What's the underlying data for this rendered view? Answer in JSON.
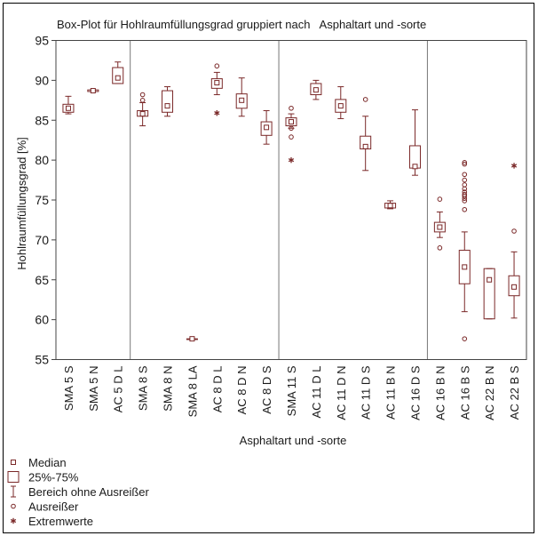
{
  "chart_data": {
    "type": "box",
    "title": "Box-Plot für Hohlraumfüllungsgrad gruppiert nach   Asphaltart und -sorte",
    "xlabel": "Asphaltart und -sorte",
    "ylabel": "Hohlraumfüllungsgrad [%]",
    "ylim": [
      55,
      95
    ],
    "yticks": [
      55,
      60,
      65,
      70,
      75,
      80,
      85,
      90,
      95
    ],
    "group_separators_after_index": [
      2,
      8,
      14
    ],
    "colors": {
      "mark": "#7a2828",
      "frame": "#000000",
      "grid": "#777777"
    },
    "categories": [
      "SMA 5 S",
      "SMA 5 N",
      "AC 5 D L",
      "SMA 8 S",
      "SMA 8 N",
      "SMA 8 LA",
      "AC 8 D L",
      "AC 8 D N",
      "AC 8 D S",
      "SMA 11 S",
      "AC 11 D L",
      "AC 11 D N",
      "AC 11 D S",
      "AC 11 B N",
      "AC 16 D S",
      "AC 16 B N",
      "AC 16 B S",
      "AC 22 B N",
      "AC 22 B S"
    ],
    "boxes": [
      {
        "median": 86.5,
        "q1": 86.0,
        "q3": 87.0,
        "whisker_low": 85.8,
        "whisker_high": 88.0,
        "outliers": [],
        "extremes": []
      },
      {
        "median": 88.7,
        "q1": 88.6,
        "q3": 88.8,
        "whisker_low": 88.6,
        "whisker_high": 88.8,
        "outliers": [],
        "extremes": []
      },
      {
        "median": 90.3,
        "q1": 89.6,
        "q3": 91.6,
        "whisker_low": 89.6,
        "whisker_high": 92.3,
        "outliers": [],
        "extremes": []
      },
      {
        "median": 85.8,
        "q1": 85.5,
        "q3": 86.2,
        "whisker_low": 84.3,
        "whisker_high": 87.2,
        "outliers": [
          88.2,
          87.5
        ],
        "extremes": []
      },
      {
        "median": 86.8,
        "q1": 86.0,
        "q3": 88.7,
        "whisker_low": 85.5,
        "whisker_high": 89.2,
        "outliers": [],
        "extremes": []
      },
      {
        "median": 57.6,
        "q1": 57.6,
        "q3": 57.6,
        "whisker_low": 57.6,
        "whisker_high": 57.6,
        "outliers": [],
        "extremes": []
      },
      {
        "median": 89.7,
        "q1": 89.0,
        "q3": 90.2,
        "whisker_low": 88.2,
        "whisker_high": 91.0,
        "outliers": [
          91.8
        ],
        "extremes": [
          85.9
        ]
      },
      {
        "median": 87.5,
        "q1": 86.5,
        "q3": 88.3,
        "whisker_low": 85.5,
        "whisker_high": 90.3,
        "outliers": [],
        "extremes": []
      },
      {
        "median": 84.1,
        "q1": 83.1,
        "q3": 84.8,
        "whisker_low": 82.0,
        "whisker_high": 86.2,
        "outliers": [],
        "extremes": []
      },
      {
        "median": 84.8,
        "q1": 84.3,
        "q3": 85.3,
        "whisker_low": 84.0,
        "whisker_high": 85.8,
        "outliers": [
          86.5,
          84.0,
          82.9
        ],
        "extremes": [
          80.0
        ]
      },
      {
        "median": 88.8,
        "q1": 88.2,
        "q3": 89.6,
        "whisker_low": 87.6,
        "whisker_high": 90.0,
        "outliers": [],
        "extremes": []
      },
      {
        "median": 86.8,
        "q1": 86.0,
        "q3": 87.6,
        "whisker_low": 85.2,
        "whisker_high": 89.2,
        "outliers": [],
        "extremes": []
      },
      {
        "median": 81.7,
        "q1": 81.4,
        "q3": 83.0,
        "whisker_low": 78.7,
        "whisker_high": 85.5,
        "outliers": [
          87.6
        ],
        "extremes": []
      },
      {
        "median": 74.3,
        "q1": 74.0,
        "q3": 74.6,
        "whisker_low": 73.9,
        "whisker_high": 74.9,
        "outliers": [],
        "extremes": []
      },
      {
        "median": 79.2,
        "q1": 79.0,
        "q3": 81.8,
        "whisker_low": 78.1,
        "whisker_high": 86.3,
        "outliers": [],
        "extremes": []
      },
      {
        "median": 71.6,
        "q1": 71.0,
        "q3": 72.2,
        "whisker_low": 70.3,
        "whisker_high": 73.5,
        "outliers": [
          75.1,
          69.0
        ],
        "extremes": []
      },
      {
        "median": 66.6,
        "q1": 64.5,
        "q3": 68.7,
        "whisker_low": 61.0,
        "whisker_high": 71.0,
        "outliers": [
          79.7,
          79.5,
          78.2,
          77.5,
          76.9,
          76.4,
          76.0,
          75.7,
          75.5,
          75.2,
          74.9,
          73.8,
          57.6
        ],
        "extremes": []
      },
      {
        "median": 65.0,
        "q1": 60.1,
        "q3": 66.4,
        "whisker_low": 60.1,
        "whisker_high": 66.4,
        "outliers": [],
        "extremes": []
      },
      {
        "median": 64.1,
        "q1": 63.0,
        "q3": 65.5,
        "whisker_low": 60.2,
        "whisker_high": 68.5,
        "outliers": [
          71.1
        ],
        "extremes": [
          79.3
        ]
      }
    ],
    "legend": {
      "placement": "bottom-left",
      "items": [
        {
          "symbol": "median",
          "label": "Median"
        },
        {
          "symbol": "box",
          "label": "25%-75%"
        },
        {
          "symbol": "whisker",
          "label": "Bereich ohne Ausreißer"
        },
        {
          "symbol": "outlier",
          "label": "Ausreißer"
        },
        {
          "symbol": "extreme",
          "label": "Extremwerte"
        }
      ]
    }
  }
}
